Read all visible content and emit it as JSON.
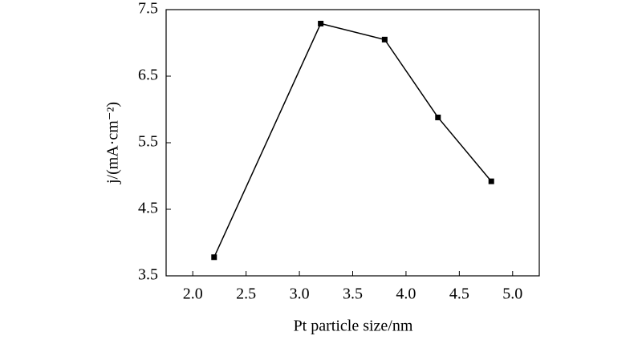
{
  "chart_data": {
    "type": "line",
    "xlabel": "Pt particle size/nm",
    "ylabel": "j/(mA·cm⁻²)",
    "x": [
      2.2,
      3.2,
      3.8,
      4.3,
      4.8
    ],
    "series": [
      {
        "color": "#000000",
        "values": [
          3.78,
          7.29,
          7.05,
          5.88,
          4.92
        ]
      }
    ],
    "xlim": [
      1.75,
      5.25
    ],
    "xticks": [
      {
        "value": 2,
        "label": "2.0"
      },
      2.5,
      {
        "value": 3,
        "label": "3.0"
      },
      3.5,
      {
        "value": 4,
        "label": "4.0"
      },
      4.5,
      {
        "value": 5,
        "label": "5.0"
      }
    ],
    "ylim": [
      3.5,
      7.5
    ],
    "yticks": [
      3.5,
      4.5,
      5.5,
      6.5,
      7.5
    ]
  }
}
